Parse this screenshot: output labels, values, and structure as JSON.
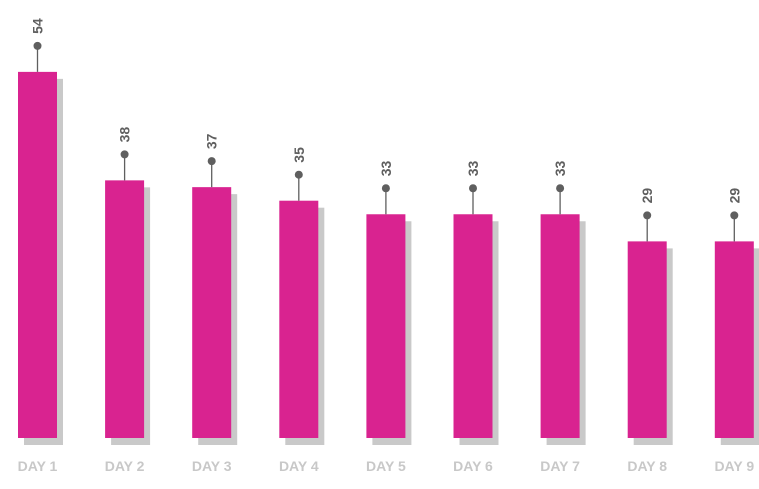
{
  "chart_data": {
    "type": "bar",
    "categories": [
      "DAY 1",
      "DAY 2",
      "DAY 3",
      "DAY 4",
      "DAY 5",
      "DAY 6",
      "DAY 7",
      "DAY 8",
      "DAY 9"
    ],
    "values": [
      54,
      38,
      37,
      35,
      33,
      33,
      33,
      29,
      29
    ],
    "title": "",
    "xlabel": "",
    "ylabel": "",
    "grid": false,
    "legend": "none",
    "colors": {
      "bar": "#d92390",
      "shadow": "#c9c9c9",
      "marker": "#5f5f5f",
      "value_label": "#5f5f5f",
      "category_label": "#c8c8c8"
    }
  }
}
